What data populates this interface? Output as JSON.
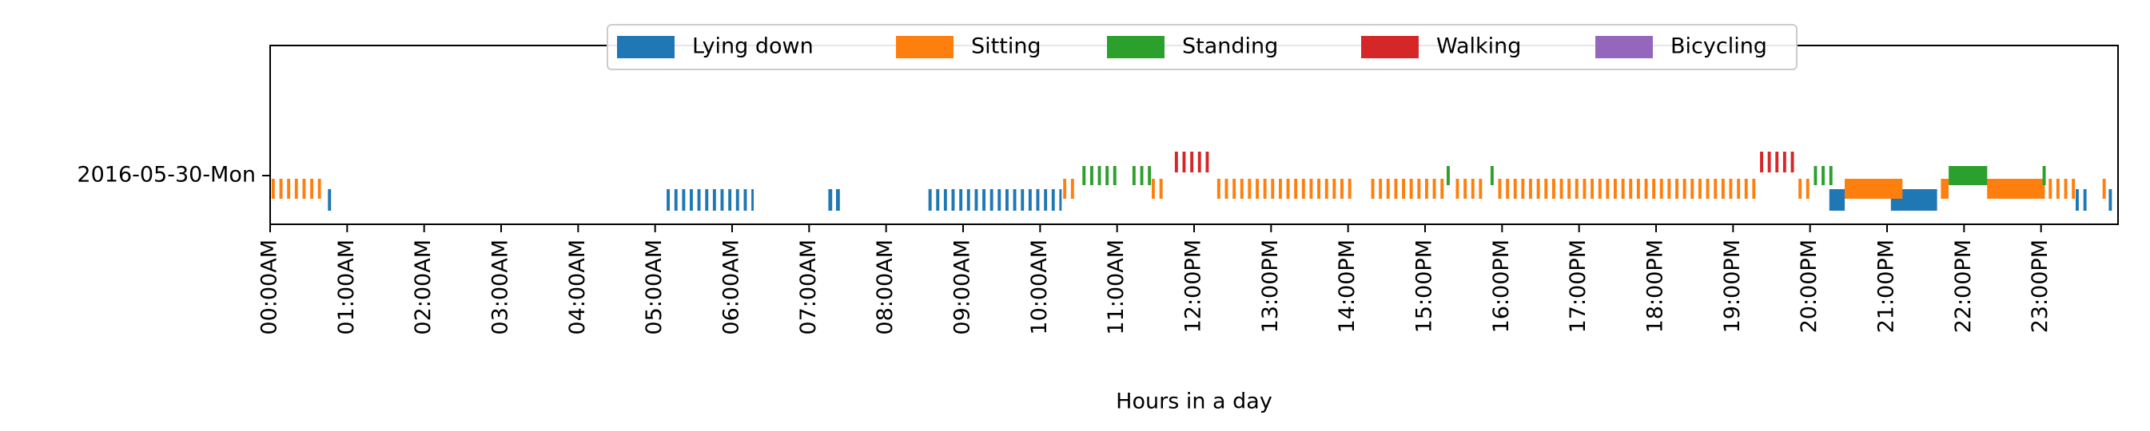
{
  "chart_data": {
    "type": "timeline",
    "xlabel": "Hours in a day",
    "row_label": "2016-05-30-Mon",
    "xlim": [
      0,
      24
    ],
    "x_ticks": [
      {
        "value": 0,
        "label": "00:00AM"
      },
      {
        "value": 1,
        "label": "01:00AM"
      },
      {
        "value": 2,
        "label": "02:00AM"
      },
      {
        "value": 3,
        "label": "03:00AM"
      },
      {
        "value": 4,
        "label": "04:00AM"
      },
      {
        "value": 5,
        "label": "05:00AM"
      },
      {
        "value": 6,
        "label": "06:00AM"
      },
      {
        "value": 7,
        "label": "07:00AM"
      },
      {
        "value": 8,
        "label": "08:00AM"
      },
      {
        "value": 9,
        "label": "09:00AM"
      },
      {
        "value": 10,
        "label": "10:00AM"
      },
      {
        "value": 11,
        "label": "11:00AM"
      },
      {
        "value": 12,
        "label": "12:00PM"
      },
      {
        "value": 13,
        "label": "13:00PM"
      },
      {
        "value": 14,
        "label": "14:00PM"
      },
      {
        "value": 15,
        "label": "15:00PM"
      },
      {
        "value": 16,
        "label": "16:00PM"
      },
      {
        "value": 17,
        "label": "17:00PM"
      },
      {
        "value": 18,
        "label": "18:00PM"
      },
      {
        "value": 19,
        "label": "19:00PM"
      },
      {
        "value": 20,
        "label": "20:00PM"
      },
      {
        "value": 21,
        "label": "21:00PM"
      },
      {
        "value": 22,
        "label": "22:00PM"
      },
      {
        "value": 23,
        "label": "23:00PM"
      }
    ],
    "legend": {
      "placement": "upper-center",
      "columns": 5
    },
    "series": [
      {
        "name": "Lying down",
        "color": "#1f77b4",
        "segments": [
          [
            0.75,
            0.79
          ],
          [
            5.15,
            5.19
          ],
          [
            5.25,
            5.29
          ],
          [
            5.35,
            5.39
          ],
          [
            5.45,
            5.49
          ],
          [
            5.55,
            5.59
          ],
          [
            5.65,
            5.69
          ],
          [
            5.75,
            5.79
          ],
          [
            5.85,
            5.89
          ],
          [
            5.95,
            5.99
          ],
          [
            6.05,
            6.09
          ],
          [
            6.15,
            6.19
          ],
          [
            6.25,
            6.28
          ],
          [
            7.25,
            7.3
          ],
          [
            7.35,
            7.4
          ],
          [
            8.55,
            8.59
          ],
          [
            8.65,
            8.69
          ],
          [
            8.75,
            8.79
          ],
          [
            8.85,
            8.89
          ],
          [
            8.95,
            8.99
          ],
          [
            9.05,
            9.09
          ],
          [
            9.15,
            9.19
          ],
          [
            9.25,
            9.29
          ],
          [
            9.35,
            9.39
          ],
          [
            9.45,
            9.49
          ],
          [
            9.55,
            9.59
          ],
          [
            9.65,
            9.69
          ],
          [
            9.75,
            9.79
          ],
          [
            9.85,
            9.89
          ],
          [
            9.95,
            9.99
          ],
          [
            10.05,
            10.09
          ],
          [
            10.15,
            10.19
          ],
          [
            10.25,
            10.28
          ],
          [
            20.25,
            20.45
          ],
          [
            21.05,
            21.65
          ],
          [
            23.45,
            23.49
          ],
          [
            23.55,
            23.59
          ],
          [
            23.88,
            23.92
          ]
        ]
      },
      {
        "name": "Sitting",
        "color": "#ff7f0e",
        "segments": [
          [
            0.02,
            0.06
          ],
          [
            0.12,
            0.16
          ],
          [
            0.22,
            0.26
          ],
          [
            0.32,
            0.36
          ],
          [
            0.42,
            0.46
          ],
          [
            0.52,
            0.56
          ],
          [
            0.62,
            0.66
          ],
          [
            10.3,
            10.34
          ],
          [
            10.4,
            10.44
          ],
          [
            11.45,
            11.49
          ],
          [
            11.55,
            11.59
          ],
          [
            12.3,
            12.34
          ],
          [
            12.4,
            12.44
          ],
          [
            12.5,
            12.54
          ],
          [
            12.6,
            12.64
          ],
          [
            12.7,
            12.74
          ],
          [
            12.8,
            12.84
          ],
          [
            12.9,
            12.94
          ],
          [
            13.0,
            13.04
          ],
          [
            13.1,
            13.14
          ],
          [
            13.2,
            13.24
          ],
          [
            13.3,
            13.34
          ],
          [
            13.4,
            13.44
          ],
          [
            13.5,
            13.54
          ],
          [
            13.6,
            13.64
          ],
          [
            13.7,
            13.74
          ],
          [
            13.8,
            13.84
          ],
          [
            13.9,
            13.94
          ],
          [
            14.0,
            14.04
          ],
          [
            14.3,
            14.34
          ],
          [
            14.4,
            14.44
          ],
          [
            14.5,
            14.54
          ],
          [
            14.6,
            14.64
          ],
          [
            14.7,
            14.74
          ],
          [
            14.8,
            14.84
          ],
          [
            14.9,
            14.94
          ],
          [
            15.0,
            15.04
          ],
          [
            15.1,
            15.14
          ],
          [
            15.2,
            15.24
          ],
          [
            15.4,
            15.44
          ],
          [
            15.5,
            15.54
          ],
          [
            15.6,
            15.64
          ],
          [
            15.7,
            15.74
          ],
          [
            15.95,
            15.99
          ],
          [
            16.05,
            16.09
          ],
          [
            16.15,
            16.19
          ],
          [
            16.25,
            16.29
          ],
          [
            16.35,
            16.39
          ],
          [
            16.45,
            16.49
          ],
          [
            16.55,
            16.59
          ],
          [
            16.65,
            16.69
          ],
          [
            16.75,
            16.79
          ],
          [
            16.85,
            16.89
          ],
          [
            16.95,
            16.99
          ],
          [
            17.05,
            17.09
          ],
          [
            17.15,
            17.19
          ],
          [
            17.25,
            17.29
          ],
          [
            17.35,
            17.39
          ],
          [
            17.45,
            17.49
          ],
          [
            17.55,
            17.59
          ],
          [
            17.65,
            17.69
          ],
          [
            17.75,
            17.79
          ],
          [
            17.85,
            17.89
          ],
          [
            17.95,
            17.99
          ],
          [
            18.05,
            18.09
          ],
          [
            18.15,
            18.19
          ],
          [
            18.25,
            18.29
          ],
          [
            18.35,
            18.39
          ],
          [
            18.45,
            18.49
          ],
          [
            18.55,
            18.59
          ],
          [
            18.65,
            18.69
          ],
          [
            18.75,
            18.79
          ],
          [
            18.85,
            18.89
          ],
          [
            18.95,
            18.99
          ],
          [
            19.05,
            19.09
          ],
          [
            19.15,
            19.19
          ],
          [
            19.25,
            19.29
          ],
          [
            19.85,
            19.89
          ],
          [
            19.95,
            19.99
          ],
          [
            20.45,
            21.2
          ],
          [
            21.7,
            21.8
          ],
          [
            22.3,
            23.05
          ],
          [
            23.1,
            23.14
          ],
          [
            23.2,
            23.24
          ],
          [
            23.3,
            23.34
          ],
          [
            23.4,
            23.44
          ],
          [
            23.8,
            23.84
          ]
        ]
      },
      {
        "name": "Standing",
        "color": "#2ca02c",
        "segments": [
          [
            10.55,
            10.59
          ],
          [
            10.65,
            10.69
          ],
          [
            10.75,
            10.79
          ],
          [
            10.85,
            10.89
          ],
          [
            10.95,
            10.99
          ],
          [
            11.2,
            11.24
          ],
          [
            11.3,
            11.34
          ],
          [
            11.4,
            11.44
          ],
          [
            15.28,
            15.32
          ],
          [
            15.85,
            15.89
          ],
          [
            20.05,
            20.09
          ],
          [
            20.15,
            20.19
          ],
          [
            20.25,
            20.29
          ],
          [
            21.8,
            22.3
          ],
          [
            23.02,
            23.06
          ]
        ]
      },
      {
        "name": "Walking",
        "color": "#d62728",
        "segments": [
          [
            11.75,
            11.79
          ],
          [
            11.85,
            11.89
          ],
          [
            11.95,
            11.99
          ],
          [
            12.05,
            12.09
          ],
          [
            12.15,
            12.19
          ],
          [
            19.35,
            19.39
          ],
          [
            19.45,
            19.49
          ],
          [
            19.55,
            19.59
          ],
          [
            19.65,
            19.69
          ],
          [
            19.75,
            19.79
          ]
        ]
      },
      {
        "name": "Bicycling",
        "color": "#9467bd",
        "segments": []
      }
    ]
  }
}
